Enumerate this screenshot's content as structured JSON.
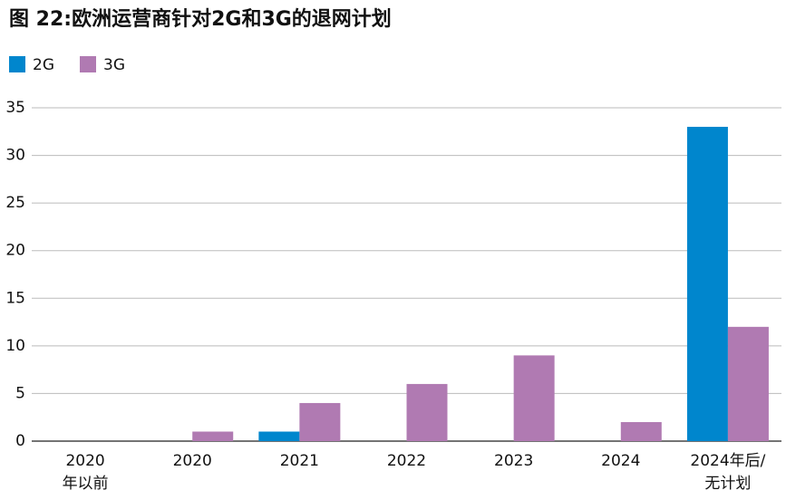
{
  "chart_data": {
    "type": "bar",
    "title": "图 22:欧洲运营商针对2G和3G的退网计划",
    "categories": [
      [
        "2020",
        "年以前"
      ],
      [
        "2020"
      ],
      [
        "2021"
      ],
      [
        "2022"
      ],
      [
        "2023"
      ],
      [
        "2024"
      ],
      [
        "2024年后/",
        "无计划"
      ]
    ],
    "series": [
      {
        "name": "2G",
        "color": "#0086cd",
        "values": [
          0,
          0,
          1,
          0,
          0,
          0,
          33
        ]
      },
      {
        "name": "3G",
        "color": "#b07ab2",
        "values": [
          0,
          1,
          4,
          6,
          9,
          2,
          12
        ]
      }
    ],
    "ylim": [
      0,
      35
    ],
    "yticks": [
      0,
      5,
      10,
      15,
      20,
      25,
      30,
      35
    ],
    "grid": true,
    "legend": "top-left"
  }
}
